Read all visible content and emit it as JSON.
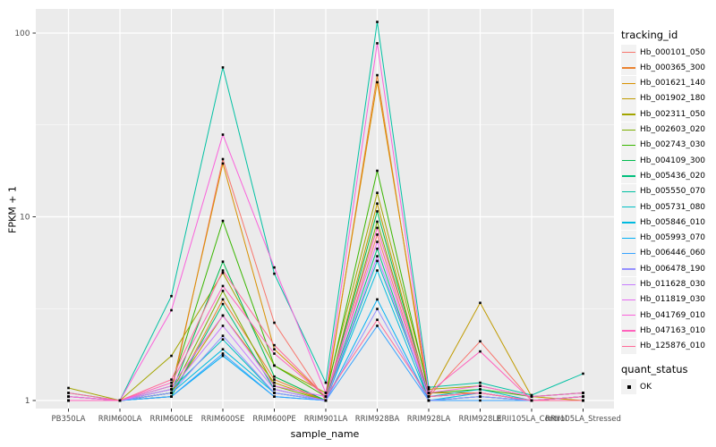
{
  "chart_data": {
    "type": "line",
    "title": "",
    "xlabel": "sample_name",
    "ylabel": "FPKM + 1",
    "y_scale": "log10",
    "y_ticks": [
      1,
      10,
      100
    ],
    "y_minor_ticks": [
      3.162,
      31.62
    ],
    "ylim": [
      0.9,
      130
    ],
    "grid": true,
    "panel_bg": "#EBEBEB",
    "grid_color": "#FFFFFF",
    "tick_label_color": "#4D4D4D",
    "point_color": "#000000",
    "legend_position": "right",
    "legend_title": "tracking_id",
    "legend2_title": "quant_status",
    "legend2_items": [
      "OK"
    ],
    "categories": [
      "PB350LA",
      "RRIM600LA",
      "RRIM600LE",
      "RRIM600SE",
      "RRIM600PE",
      "RRIM901LA",
      "RRIM928BA",
      "RRIM928LA",
      "RRIM928LE",
      "RRII105LA_Control",
      "RRII105LA_Stressed"
    ],
    "series": [
      {
        "name": "Hb_000101_050",
        "color": "#F8766D",
        "values": [
          1.0,
          1.0,
          1.1,
          20.6,
          2.65,
          1.0,
          8.0,
          1.05,
          2.1,
          1.0,
          1.0
        ]
      },
      {
        "name": "Hb_000365_300",
        "color": "#EA8331",
        "values": [
          1.0,
          1.0,
          1.05,
          3.55,
          1.3,
          1.0,
          59.0,
          1.0,
          1.05,
          1.0,
          1.0
        ]
      },
      {
        "name": "Hb_001621_140",
        "color": "#D89000",
        "values": [
          1.0,
          1.0,
          1.15,
          19.5,
          1.9,
          1.05,
          54.0,
          1.1,
          1.1,
          1.0,
          1.05
        ]
      },
      {
        "name": "Hb_001902_180",
        "color": "#C09B00",
        "values": [
          1.05,
          1.0,
          1.1,
          2.9,
          1.25,
          1.0,
          11.8,
          1.05,
          3.4,
          1.05,
          1.0
        ]
      },
      {
        "name": "Hb_002311_050",
        "color": "#A3A500",
        "values": [
          1.17,
          1.0,
          1.75,
          4.95,
          1.55,
          1.1,
          13.5,
          1.15,
          1.2,
          1.05,
          1.1
        ]
      },
      {
        "name": "Hb_002603_020",
        "color": "#7CAE00",
        "values": [
          1.05,
          1.0,
          1.1,
          3.95,
          1.2,
          1.0,
          9.4,
          1.05,
          1.1,
          1.0,
          1.05
        ]
      },
      {
        "name": "Hb_002743_030",
        "color": "#39B600",
        "values": [
          1.0,
          1.0,
          1.2,
          9.5,
          1.55,
          1.05,
          17.8,
          1.1,
          1.15,
          1.05,
          1.1
        ]
      },
      {
        "name": "Hb_004109_300",
        "color": "#00BB4E",
        "values": [
          1.0,
          1.0,
          1.1,
          5.7,
          1.35,
          1.0,
          10.7,
          1.05,
          1.1,
          1.0,
          1.05
        ]
      },
      {
        "name": "Hb_005436_020",
        "color": "#00BF7D",
        "values": [
          1.0,
          1.0,
          1.05,
          3.35,
          1.15,
          1.0,
          6.7,
          1.0,
          1.05,
          1.0,
          1.0
        ]
      },
      {
        "name": "Hb_005550_070",
        "color": "#00C1A3",
        "values": [
          1.1,
          1.0,
          3.7,
          65.0,
          4.9,
          1.25,
          115.0,
          1.18,
          1.25,
          1.07,
          1.4
        ]
      },
      {
        "name": "Hb_005731_080",
        "color": "#00BFC4",
        "values": [
          1.05,
          1.0,
          1.15,
          2.15,
          1.1,
          1.0,
          5.75,
          1.05,
          1.15,
          1.0,
          1.05
        ]
      },
      {
        "name": "Hb_005846_010",
        "color": "#00BAE0",
        "values": [
          1.0,
          1.0,
          1.1,
          1.9,
          1.1,
          1.0,
          5.1,
          1.0,
          1.1,
          1.0,
          1.0
        ]
      },
      {
        "name": "Hb_005993_070",
        "color": "#00B0F6",
        "values": [
          1.0,
          1.0,
          1.05,
          1.75,
          1.05,
          1.0,
          3.55,
          1.0,
          1.05,
          1.0,
          1.0
        ]
      },
      {
        "name": "Hb_006446_060",
        "color": "#35A2FF",
        "values": [
          1.0,
          1.0,
          1.05,
          1.8,
          1.05,
          1.0,
          2.55,
          1.0,
          1.0,
          1.0,
          1.0
        ]
      },
      {
        "name": "Hb_006478_190",
        "color": "#9590FF",
        "values": [
          1.0,
          1.0,
          1.1,
          2.25,
          1.1,
          1.0,
          3.15,
          1.0,
          1.05,
          1.0,
          1.0
        ]
      },
      {
        "name": "Hb_011628_030",
        "color": "#C77CFF",
        "values": [
          1.05,
          1.0,
          1.15,
          2.55,
          1.15,
          1.0,
          6.1,
          1.05,
          1.1,
          1.0,
          1.05
        ]
      },
      {
        "name": "Hb_011819_030",
        "color": "#E76BF3",
        "values": [
          1.0,
          1.0,
          1.2,
          2.9,
          1.2,
          1.05,
          7.3,
          1.05,
          1.1,
          1.0,
          1.0
        ]
      },
      {
        "name": "Hb_041769_010",
        "color": "#FA62DB",
        "values": [
          1.05,
          1.0,
          3.1,
          28.0,
          5.3,
          1.1,
          88.0,
          1.1,
          1.2,
          1.05,
          1.1
        ]
      },
      {
        "name": "Hb_047163_010",
        "color": "#FF62BC",
        "values": [
          1.0,
          1.0,
          1.25,
          4.2,
          1.8,
          1.05,
          8.7,
          1.1,
          1.85,
          1.0,
          1.05
        ]
      },
      {
        "name": "Hb_125876_010",
        "color": "#FF6A98",
        "values": [
          1.1,
          1.0,
          1.3,
          5.1,
          2.0,
          1.05,
          2.75,
          1.05,
          1.1,
          1.0,
          1.0
        ]
      }
    ]
  }
}
